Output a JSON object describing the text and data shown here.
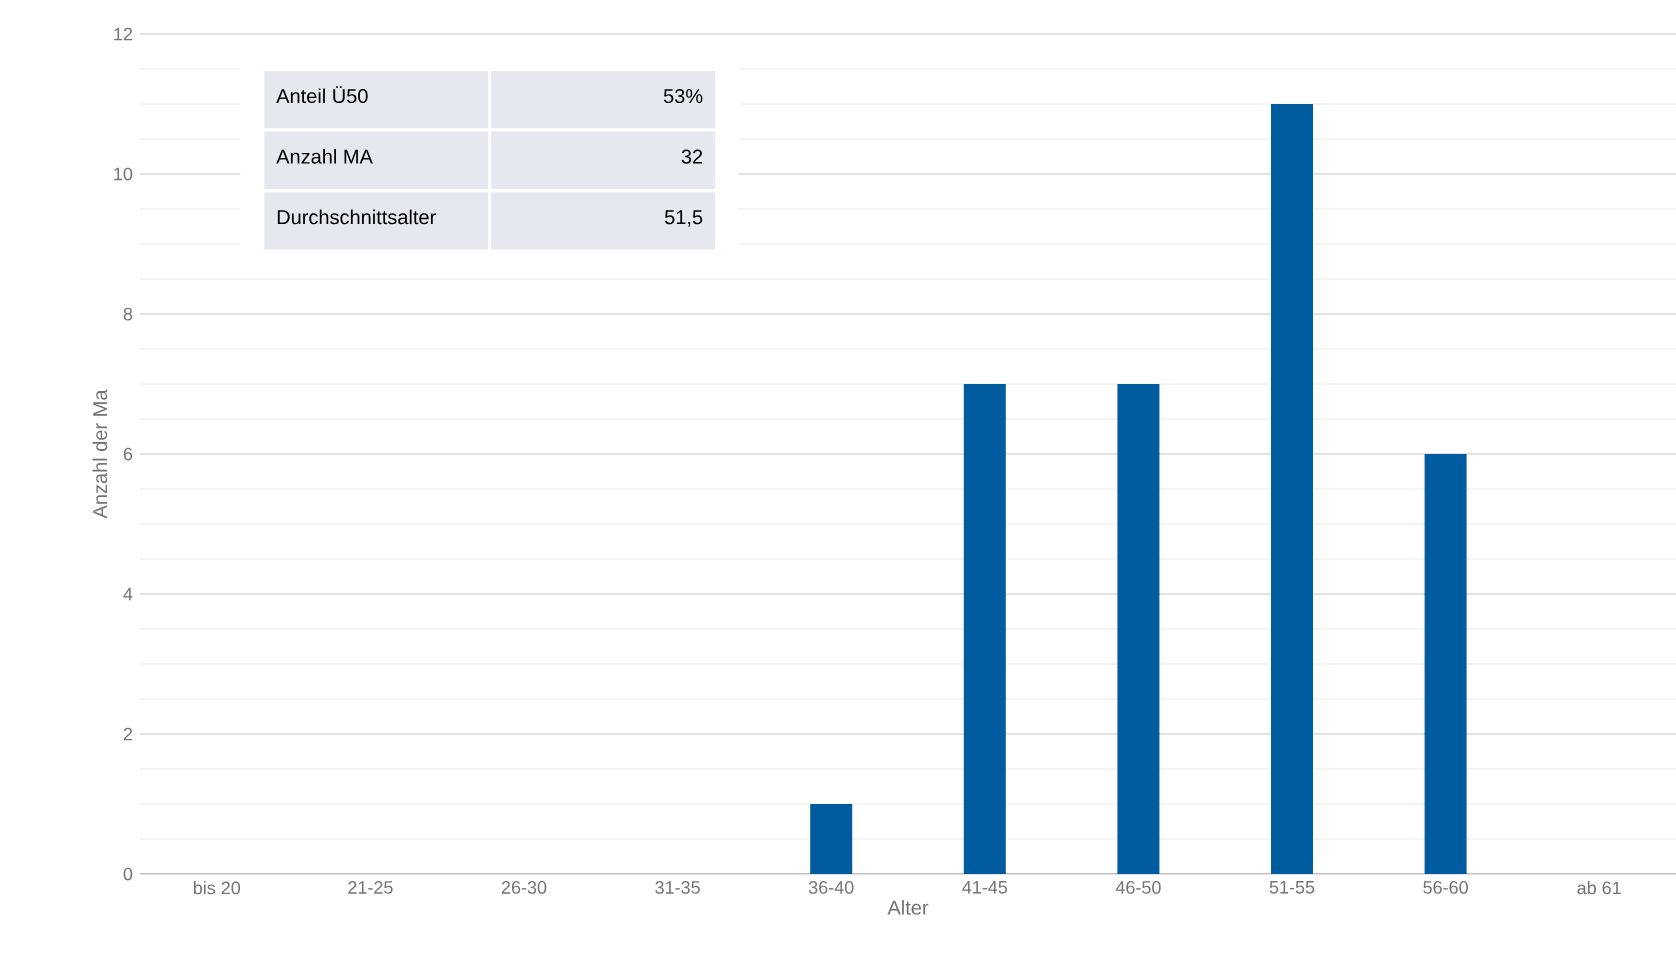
{
  "chart_data": {
    "type": "bar",
    "xlabel": "Alter",
    "ylabel": "Anzahl der Ma",
    "categories": [
      "bis 20",
      "21-25",
      "26-30",
      "31-35",
      "36-40",
      "41-45",
      "46-50",
      "51-55",
      "56-60",
      "ab 61"
    ],
    "values": [
      0,
      0,
      0,
      0,
      1,
      7,
      7,
      11,
      6,
      0
    ],
    "color": "#005b9f",
    "ylim": [
      0,
      12
    ],
    "yticks": [
      0,
      2,
      4,
      6,
      8,
      10,
      12
    ],
    "grid": "y",
    "annotations": [
      "Anteil Ü50",
      "53%",
      "Anzahl MA",
      "32",
      "Durchschnittsalter",
      "51,5"
    ]
  }
}
